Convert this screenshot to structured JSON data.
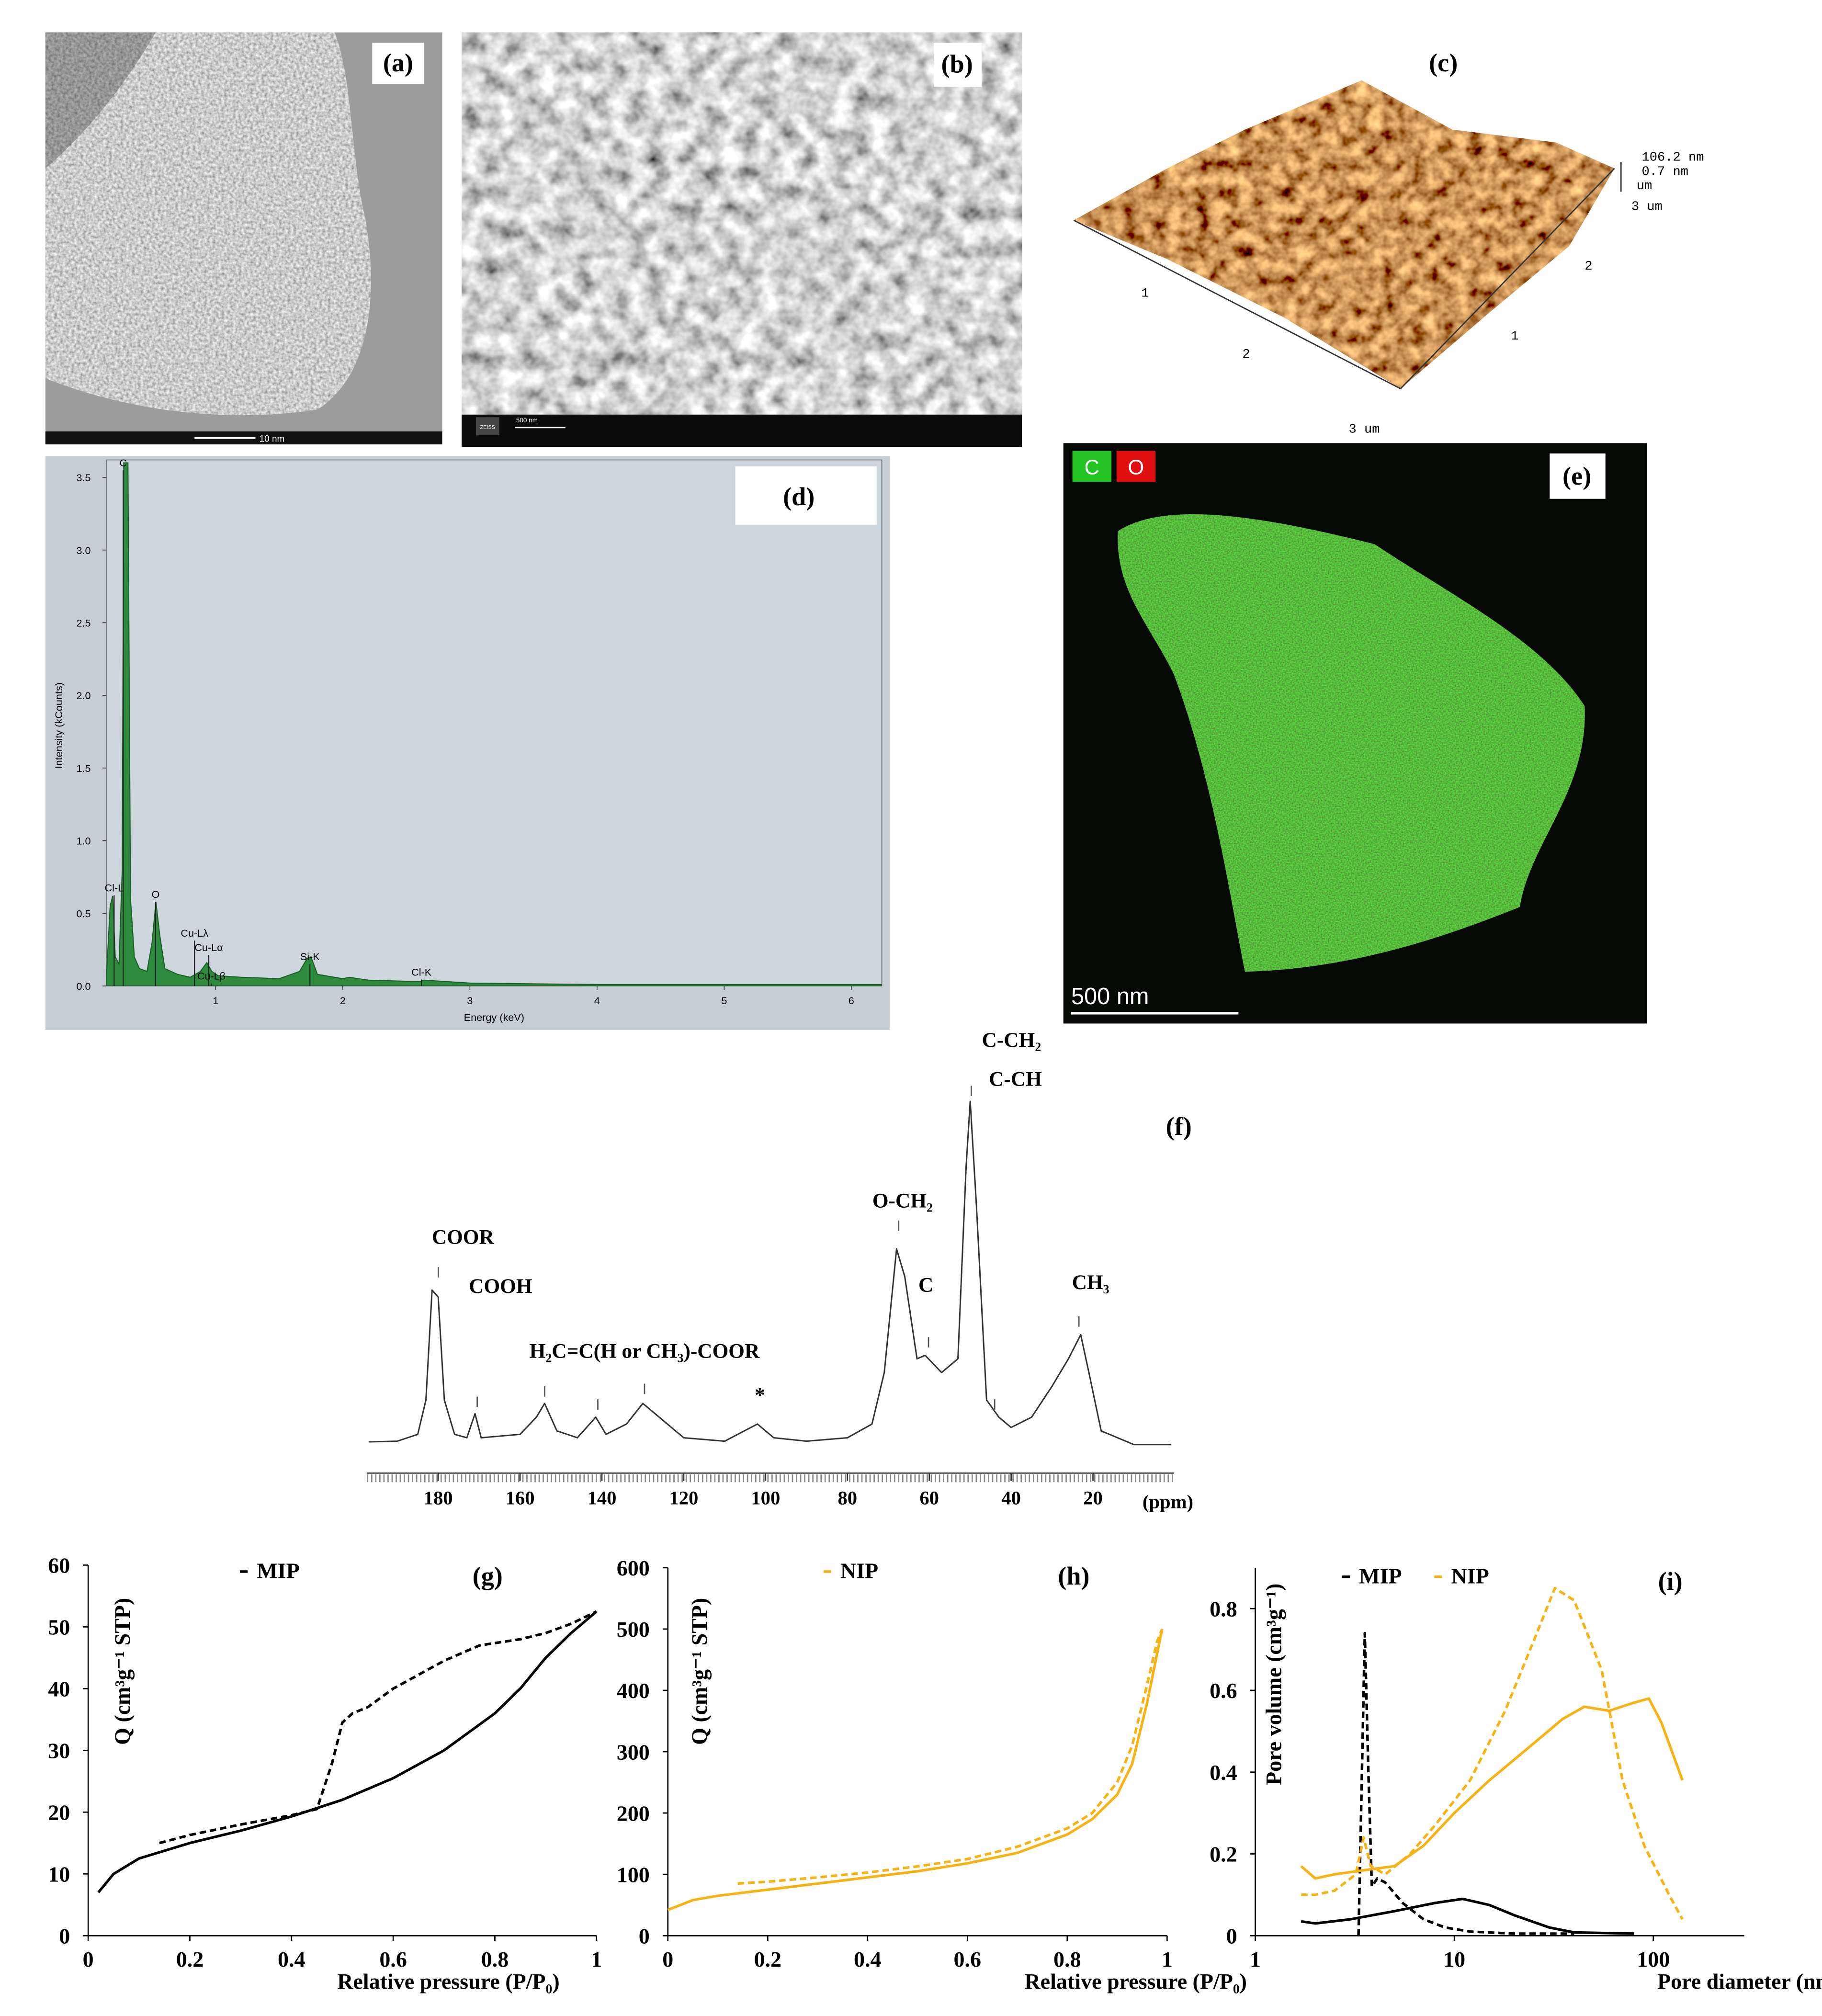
{
  "panels": {
    "a": {
      "label": "(a)",
      "scale_bar": "10 nm"
    },
    "b": {
      "label": "(b)",
      "brand": "ZEISS",
      "scale_bar": "500 nm"
    },
    "c": {
      "label": "(c)",
      "axis_labels": [
        "1",
        "2",
        "3 um",
        "1",
        "2",
        "3 um"
      ],
      "z_labels": [
        "106.2 nm",
        "0.7 nm",
        "um"
      ]
    },
    "e": {
      "label": "(e)",
      "elements": [
        "C",
        "O"
      ],
      "scale_bar": "500 nm"
    }
  },
  "chart_data": [
    {
      "type": "area",
      "panel_label": "(d)",
      "xlabel": "Energy (keV)",
      "ylabel": "Intensity (kCounts)",
      "color": "#2e8b3e",
      "x": [
        0.14,
        0.17,
        0.19,
        0.21,
        0.24,
        0.265,
        0.277,
        0.31,
        0.33,
        0.36,
        0.4,
        0.46,
        0.5,
        0.53,
        0.56,
        0.6,
        0.7,
        0.8,
        0.88,
        0.93,
        0.97,
        1.02,
        1.2,
        1.5,
        1.66,
        1.72,
        1.75,
        1.8,
        2.0,
        2.05,
        2.2,
        2.6,
        2.64,
        3.0,
        4.0,
        5.0,
        6.24
      ],
      "values": [
        0.05,
        0.55,
        0.62,
        0.2,
        0.15,
        0.8,
        3.6,
        3.6,
        0.6,
        0.2,
        0.12,
        0.1,
        0.3,
        0.58,
        0.35,
        0.12,
        0.08,
        0.06,
        0.1,
        0.16,
        0.1,
        0.07,
        0.06,
        0.05,
        0.1,
        0.19,
        0.2,
        0.08,
        0.05,
        0.06,
        0.04,
        0.03,
        0.04,
        0.02,
        0.01,
        0.01,
        0.01
      ],
      "xlim": [
        0.14,
        6.24
      ],
      "ylim": [
        0,
        3.62
      ],
      "xticks": [
        1,
        2,
        3,
        4,
        5,
        6
      ],
      "yticks": [
        {
          "value": 0,
          "label": "0.0"
        },
        {
          "value": 0.5,
          "label": "0.5"
        },
        {
          "value": 1,
          "label": "1.0"
        },
        {
          "value": 1.5,
          "label": "1.5"
        },
        {
          "value": 2,
          "label": "2.0"
        },
        {
          "value": 2.5,
          "label": "2.5"
        },
        {
          "value": 3,
          "label": "3.0"
        },
        {
          "value": 3.5,
          "label": "3.5"
        }
      ],
      "peak_labels": [
        "C",
        "Cl-L",
        "O",
        "Cu-Lλ",
        "Cu-Lα",
        "Cu-Lβ",
        "Si-K",
        "Cl-K"
      ]
    },
    {
      "type": "line",
      "panel_label": "(f)",
      "xlabel": "(ppm)",
      "color": "#333333",
      "x": [
        197,
        190,
        185,
        183,
        181.5,
        180,
        178.5,
        176,
        173,
        171,
        169.5,
        160,
        156,
        154,
        151,
        146,
        141.5,
        139,
        134,
        130,
        126,
        120,
        110,
        102,
        98,
        90,
        80,
        74,
        71,
        68,
        66,
        63,
        61,
        57,
        53,
        51,
        50,
        48.5,
        46,
        43,
        40,
        35,
        30,
        26,
        23,
        21,
        18,
        10,
        1
      ],
      "values": [
        0.8,
        1,
        3,
        13,
        45,
        43,
        13,
        3,
        2,
        9,
        2,
        3,
        8,
        12,
        4,
        2,
        8,
        3,
        6,
        12,
        8,
        2,
        1,
        6,
        2,
        1,
        2,
        6,
        21,
        57,
        49,
        25,
        26,
        21,
        25,
        81,
        100,
        70,
        13,
        8,
        5,
        8,
        17,
        25,
        32,
        21,
        4,
        0,
        0
      ],
      "xlim": [
        197.4,
        0.3
      ],
      "ylim": [
        0,
        100
      ],
      "xticks": [
        180,
        160,
        140,
        120,
        100,
        80,
        60,
        40,
        20
      ],
      "annotations": [
        "COOR",
        "COOH",
        "H₂C=C(H or CH₃)-COOR",
        "*",
        "O-CH₂",
        "C",
        "C-CH₂",
        "C-CH",
        "CH₃"
      ]
    },
    {
      "type": "line",
      "panel_label": "(g)",
      "xlabel": "Relative pressure (P/P₀)",
      "ylabel": "Q (cm³g⁻¹ STP)",
      "xlim": [
        0,
        1
      ],
      "ylim": [
        0,
        60
      ],
      "xticks": [
        0,
        0.2,
        0.4,
        0.6,
        0.8,
        1
      ],
      "yticks": [
        0,
        10,
        20,
        30,
        40,
        50,
        60
      ],
      "series": [
        {
          "name": "MIP",
          "color": "#000000",
          "dash": true,
          "x": [
            0.14,
            0.2,
            0.3,
            0.4,
            0.45,
            0.48,
            0.5,
            0.52,
            0.55,
            0.6,
            0.7,
            0.77,
            0.85,
            0.9,
            0.95,
            1
          ],
          "values": [
            15,
            16.3,
            18,
            19.5,
            20.5,
            28,
            34.5,
            36,
            37,
            40,
            44.5,
            47,
            48,
            49,
            50.5,
            52.5
          ]
        },
        {
          "color": "#000000",
          "dash": false,
          "x": [
            0.02,
            0.05,
            0.1,
            0.2,
            0.3,
            0.4,
            0.5,
            0.6,
            0.7,
            0.8,
            0.85,
            0.9,
            0.95,
            1
          ],
          "values": [
            7,
            10,
            12.5,
            15,
            17,
            19.3,
            22,
            25.5,
            30,
            36,
            40,
            45,
            49,
            52.5
          ]
        }
      ]
    },
    {
      "type": "line",
      "panel_label": "(h)",
      "xlabel": "Relative pressure (P/P₀)",
      "ylabel": "Q (cm³g⁻¹ STP)",
      "xlim": [
        0,
        1
      ],
      "ylim": [
        0,
        600
      ],
      "xticks": [
        0,
        0.2,
        0.4,
        0.6,
        0.8,
        1
      ],
      "yticks": [
        0,
        100,
        200,
        300,
        400,
        500,
        600
      ],
      "series": [
        {
          "name": "NIP",
          "color": "#f5b316",
          "dash": true,
          "x": [
            0.14,
            0.2,
            0.3,
            0.4,
            0.5,
            0.6,
            0.7,
            0.8,
            0.85,
            0.9,
            0.93,
            0.96,
            0.98,
            0.99
          ],
          "values": [
            85,
            88,
            95,
            103,
            113,
            125,
            145,
            175,
            200,
            250,
            310,
            410,
            480,
            500
          ]
        },
        {
          "color": "#f5b316",
          "dash": false,
          "x": [
            0,
            0.05,
            0.1,
            0.2,
            0.3,
            0.4,
            0.5,
            0.6,
            0.7,
            0.8,
            0.85,
            0.9,
            0.93,
            0.96,
            0.98,
            0.99
          ],
          "values": [
            42,
            58,
            65,
            75,
            85,
            95,
            105,
            118,
            135,
            165,
            190,
            230,
            280,
            380,
            460,
            500
          ]
        }
      ]
    },
    {
      "type": "line",
      "panel_label": "(i)",
      "xlabel": "Pore diameter (nm)",
      "ylabel": "Pore volume (cm³g⁻¹)",
      "xlog": true,
      "xlim": [
        1,
        286
      ],
      "ylim": [
        0,
        0.9
      ],
      "xticks": [
        1,
        10,
        100
      ],
      "yticks": [
        0,
        0.2,
        0.4,
        0.6,
        0.8
      ],
      "series": [
        {
          "name": "MIP",
          "color": "#000000",
          "dash": true,
          "x": [
            3.3,
            3.4,
            3.55,
            3.7,
            3.85,
            4.1,
            4.5,
            5.5,
            7,
            9,
            12,
            20,
            40
          ],
          "values": [
            0,
            0.3,
            0.74,
            0.4,
            0.12,
            0.14,
            0.13,
            0.08,
            0.04,
            0.02,
            0.01,
            0.005,
            0.005
          ]
        },
        {
          "name": "NIP",
          "color": "#f5b316",
          "dash": false,
          "x": [
            1.7,
            2,
            2.5,
            3.5,
            5,
            7,
            10,
            15,
            25,
            35,
            45,
            60,
            80,
            95,
            110,
            140
          ],
          "values": [
            0.17,
            0.14,
            0.15,
            0.16,
            0.17,
            0.22,
            0.3,
            0.38,
            0.47,
            0.53,
            0.56,
            0.55,
            0.57,
            0.58,
            0.52,
            0.38
          ]
        },
        {
          "color": "#000000",
          "dash": false,
          "x": [
            1.7,
            2,
            3,
            5,
            8,
            11,
            15,
            20,
            30,
            40,
            80
          ],
          "values": [
            0.035,
            0.03,
            0.04,
            0.06,
            0.08,
            0.09,
            0.075,
            0.05,
            0.02,
            0.008,
            0.005
          ]
        },
        {
          "color": "#f5b316",
          "dash": true,
          "x": [
            1.7,
            2,
            2.5,
            3.2,
            3.5,
            3.8,
            4.5,
            6,
            8,
            12,
            18,
            25,
            32,
            40,
            55,
            70,
            90,
            120,
            140
          ],
          "values": [
            0.1,
            0.1,
            0.11,
            0.15,
            0.24,
            0.17,
            0.15,
            0.2,
            0.27,
            0.38,
            0.55,
            0.72,
            0.85,
            0.82,
            0.65,
            0.38,
            0.22,
            0.1,
            0.04
          ]
        }
      ]
    }
  ]
}
